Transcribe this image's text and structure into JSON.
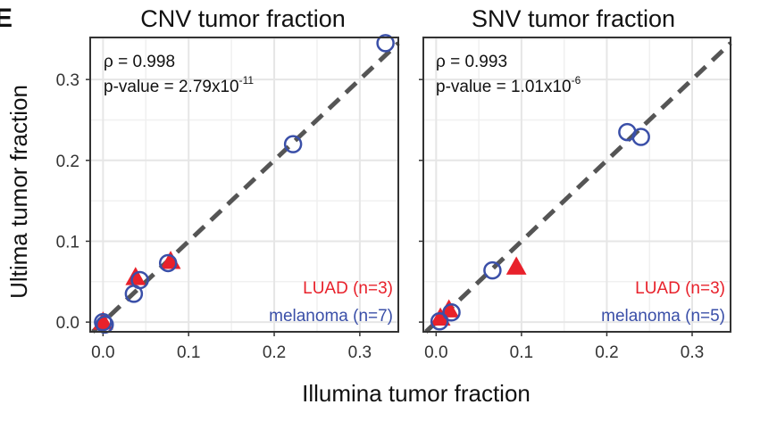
{
  "chart_data": [
    {
      "type": "scatter",
      "title": "CNV tumor fraction",
      "xlabel": "Illumina tumor fraction",
      "ylabel": "Ultima tumor fraction",
      "xlim": [
        -0.015,
        0.345
      ],
      "ylim": [
        -0.012,
        0.352
      ],
      "xticks": [
        "0.0",
        "0.1",
        "0.2",
        "0.3"
      ],
      "yticks": [
        "0.0",
        "0.1",
        "0.2",
        "0.3"
      ],
      "stats": {
        "rho": "ρ = 0.998",
        "pvalue_base": "p-value = 2.79x10",
        "pvalue_exp": "-11"
      },
      "series": [
        {
          "name": "LUAD (n=3)",
          "marker": "triangle",
          "color": "#e8212b",
          "points": [
            [
              0.0,
              0.0
            ],
            [
              0.038,
              0.055
            ],
            [
              0.079,
              0.075
            ]
          ]
        },
        {
          "name": "melanoma (n=7)",
          "marker": "circle-open",
          "color": "#3a4fa8",
          "points": [
            [
              0.0,
              0.0
            ],
            [
              0.002,
              -0.003
            ],
            [
              0.036,
              0.035
            ],
            [
              0.043,
              0.052
            ],
            [
              0.076,
              0.073
            ],
            [
              0.222,
              0.22
            ],
            [
              0.33,
              0.345
            ]
          ]
        }
      ],
      "diagonal": "y = x"
    },
    {
      "type": "scatter",
      "title": "SNV tumor fraction",
      "xlabel": "Illumina tumor fraction",
      "ylabel": "Ultima tumor fraction",
      "xlim": [
        -0.015,
        0.345
      ],
      "ylim": [
        -0.012,
        0.352
      ],
      "xticks": [
        "0.0",
        "0.1",
        "0.2",
        "0.3"
      ],
      "yticks": [
        "0.0",
        "0.1",
        "0.2",
        "0.3"
      ],
      "stats": {
        "rho": "ρ = 0.993",
        "pvalue_base": "p-value = 1.01x10",
        "pvalue_exp": "-6"
      },
      "series": [
        {
          "name": "LUAD (n=3)",
          "marker": "triangle",
          "color": "#e8212b",
          "points": [
            [
              0.005,
              0.005
            ],
            [
              0.015,
              0.015
            ],
            [
              0.094,
              0.068
            ]
          ]
        },
        {
          "name": "melanoma (n=5)",
          "marker": "circle-open",
          "color": "#3a4fa8",
          "points": [
            [
              0.004,
              0.001
            ],
            [
              0.018,
              0.012
            ],
            [
              0.066,
              0.064
            ],
            [
              0.224,
              0.235
            ],
            [
              0.24,
              0.229
            ]
          ]
        }
      ],
      "diagonal": "y = x"
    }
  ],
  "panel_letter": "E",
  "colors": {
    "luad": "#e8212b",
    "melanoma": "#3a4fa8",
    "grid": "#e6e6e6",
    "diagonal": "#555555"
  }
}
